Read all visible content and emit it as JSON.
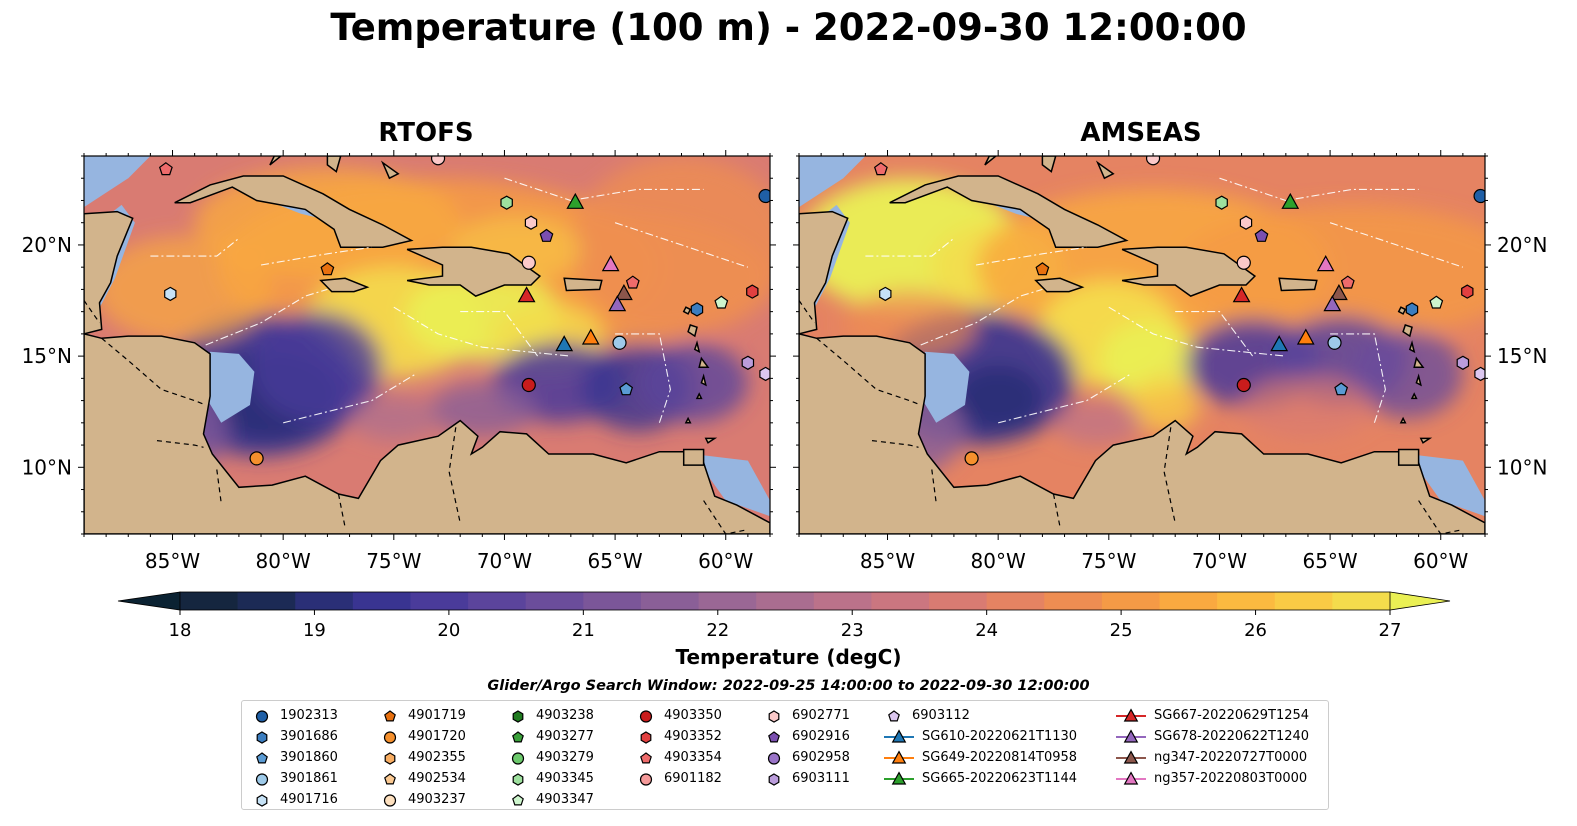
{
  "title": "Temperature (100 m) - 2022-09-30 12:00:00",
  "panels": [
    {
      "title": "RTOFS"
    },
    {
      "title": "AMSEAS"
    }
  ],
  "lat_labels": [
    "20°N",
    "15°N",
    "10°N"
  ],
  "lon_labels": [
    "85°W",
    "80°W",
    "75°W",
    "70°W",
    "65°W",
    "60°W"
  ],
  "colorbar": {
    "label": "Temperature (degC)",
    "ticks": [
      "18",
      "19",
      "20",
      "21",
      "22",
      "23",
      "24",
      "25",
      "26",
      "27"
    ],
    "range": [
      18,
      27
    ],
    "colors": [
      "#0b2232",
      "#15263f",
      "#1c2a55",
      "#2a2f77",
      "#393491",
      "#4a3b9a",
      "#5b449c",
      "#6b4d9b",
      "#7b5699",
      "#8a5f97",
      "#9a6795",
      "#aa6d90",
      "#bb728a",
      "#cb7680",
      "#d97b72",
      "#e58362",
      "#ee8d52",
      "#f59a46",
      "#f9a940",
      "#fbba40",
      "#f9cb45",
      "#f4dc4c",
      "#eaf054"
    ]
  },
  "search_window": "Glider/Argo Search Window: 2022-09-25 14:00:00 to 2022-09-30 12:00:00",
  "legend": {
    "columns": [
      [
        {
          "label": "1902313",
          "marker": "circle",
          "color": "#1f5fa6"
        },
        {
          "label": "3901686",
          "marker": "hexagon",
          "color": "#3b7dbf"
        },
        {
          "label": "3901860",
          "marker": "pentagon",
          "color": "#5a9bd4"
        },
        {
          "label": "3901861",
          "marker": "circle",
          "color": "#9ecae9"
        },
        {
          "label": "4901716",
          "marker": "hexagon",
          "color": "#c6e2f6"
        }
      ],
      [
        {
          "label": "4901719",
          "marker": "pentagon",
          "color": "#e8700e"
        },
        {
          "label": "4901720",
          "marker": "circle",
          "color": "#f5902d"
        },
        {
          "label": "4902355",
          "marker": "hexagon",
          "color": "#f8ad62"
        },
        {
          "label": "4902534",
          "marker": "pentagon",
          "color": "#fbc992"
        },
        {
          "label": "4903237",
          "marker": "circle",
          "color": "#fde0bf"
        }
      ],
      [
        {
          "label": "4903238",
          "marker": "hexagon",
          "color": "#1f7a1f"
        },
        {
          "label": "4903277",
          "marker": "pentagon",
          "color": "#3aa03a"
        },
        {
          "label": "4903279",
          "marker": "circle",
          "color": "#6cc96c"
        },
        {
          "label": "4903345",
          "marker": "hexagon",
          "color": "#9ee09e"
        },
        {
          "label": "4903347",
          "marker": "pentagon",
          "color": "#cdf5cd"
        }
      ],
      [
        {
          "label": "4903350",
          "marker": "circle",
          "color": "#c91c1c"
        },
        {
          "label": "4903352",
          "marker": "hexagon",
          "color": "#e24040"
        },
        {
          "label": "4903354",
          "marker": "pentagon",
          "color": "#ee6b6b"
        },
        {
          "label": "6901182",
          "marker": "circle",
          "color": "#f59a9a"
        }
      ],
      [
        {
          "label": "6902771",
          "marker": "hexagon",
          "color": "#fbc9c9"
        },
        {
          "label": "6902916",
          "marker": "pentagon",
          "color": "#7b4fb0"
        },
        {
          "label": "6902958",
          "marker": "circle",
          "color": "#9a74c8"
        },
        {
          "label": "6903111",
          "marker": "hexagon",
          "color": "#bb9ddc"
        }
      ],
      [
        {
          "label": "6903112",
          "marker": "pentagon",
          "color": "#dcc7ef"
        },
        {
          "label": "SG610-20220621T1130",
          "marker": "triangle",
          "color": "#1f77b4",
          "line": true
        },
        {
          "label": "SG649-20220814T0958",
          "marker": "triangle",
          "color": "#ff7f0e",
          "line": true
        },
        {
          "label": "SG665-20220623T1144",
          "marker": "triangle",
          "color": "#2ca02c",
          "line": true
        }
      ],
      [
        {
          "label": "SG667-20220629T1254",
          "marker": "triangle",
          "color": "#d62728",
          "line": true
        },
        {
          "label": "SG678-20220622T1240",
          "marker": "triangle",
          "color": "#9467bd",
          "line": true
        },
        {
          "label": "ng347-20220727T0000",
          "marker": "triangle",
          "color": "#8c564b",
          "line": true
        },
        {
          "label": "ng357-20220803T0000",
          "marker": "triangle",
          "color": "#e377c2",
          "line": true
        }
      ]
    ]
  }
}
